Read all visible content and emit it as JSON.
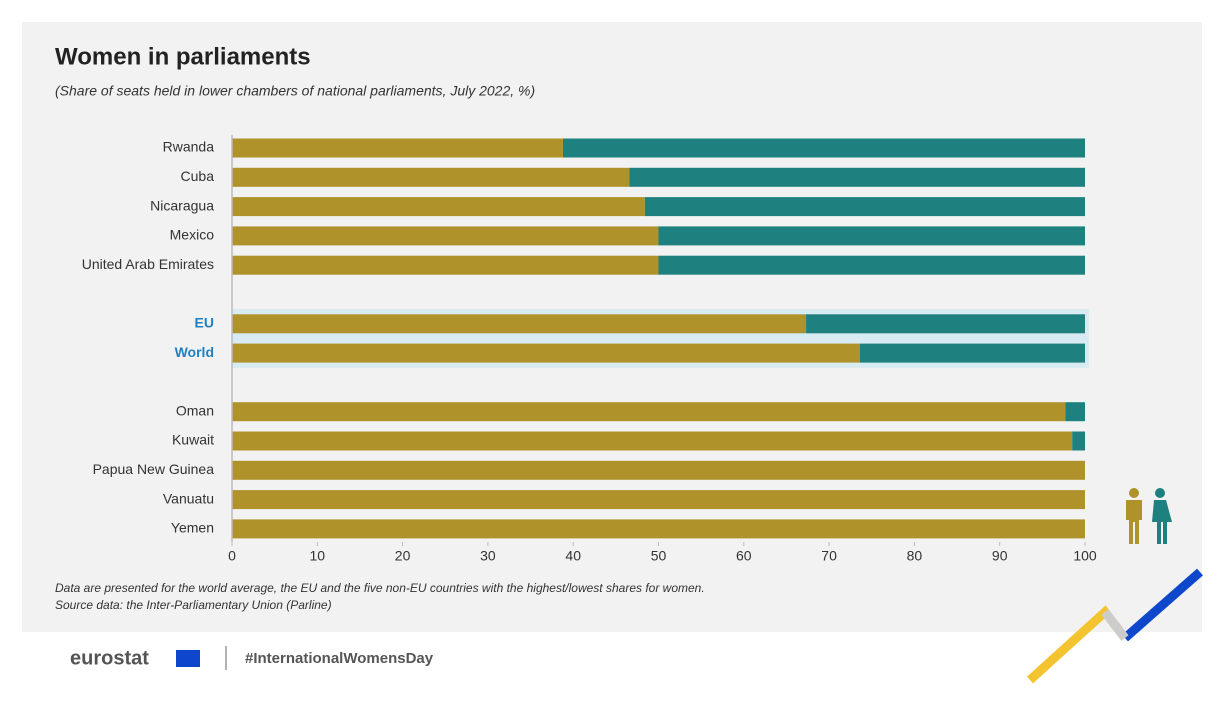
{
  "chart_data": {
    "type": "stacked-barh",
    "title": "Women in parliaments",
    "subtitle": "(Share of seats held in lower chambers of national parliaments, July 2022, %)",
    "categories": [
      "Rwanda",
      "Cuba",
      "Nicaragua",
      "Mexico",
      "United Arab Emirates",
      null,
      "EU",
      "World",
      null,
      "Oman",
      "Kuwait",
      "Papua New Guinea",
      "Vanuatu",
      "Yemen"
    ],
    "series": [
      {
        "color": "#b0922a",
        "values": [
          38.8,
          46.6,
          48.4,
          50,
          50,
          null,
          67.3,
          73.6,
          null,
          97.7,
          98.5,
          100,
          100,
          100
        ]
      },
      {
        "color": "#1f8080",
        "values": [
          61.2,
          53.4,
          51.6,
          50,
          50,
          null,
          32.7,
          26.4,
          null,
          2.3,
          1.5,
          0,
          0,
          0
        ]
      }
    ],
    "xlim": [
      0,
      100
    ],
    "xticks": [
      0,
      10,
      20,
      30,
      40,
      50,
      60,
      70,
      80,
      90,
      100
    ],
    "grid": false,
    "notes": [
      "Data are presented for the world average, the EU and the five non-EU countries with the highest/lowest shares for women.",
      "Source data: the Inter-Parliamentary Union (Parline)"
    ]
  },
  "footer": {
    "brand": "eurostat",
    "hashtag": "#InternationalWomensDay"
  }
}
